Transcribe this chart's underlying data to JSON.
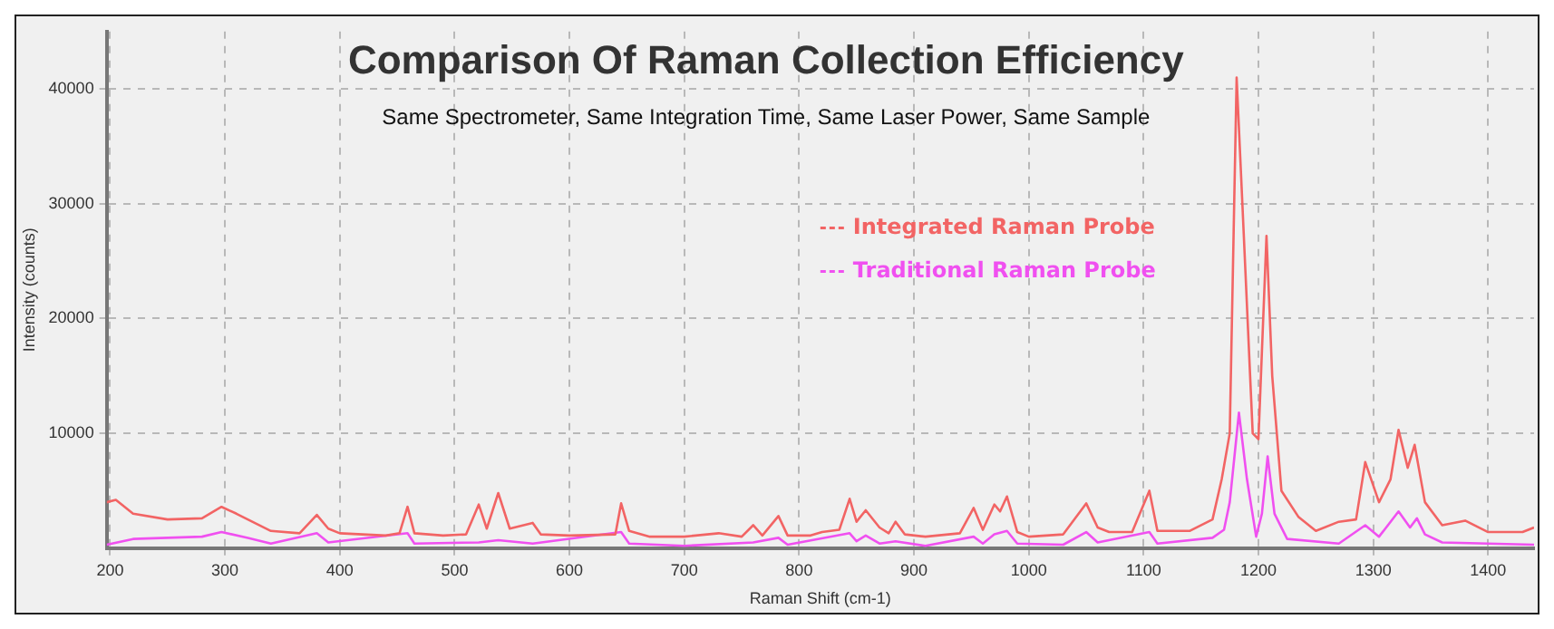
{
  "chart_data": {
    "type": "line",
    "title": "Comparison Of Raman Collection Efficiency",
    "subtitle": "Same Spectrometer, Same Integration Time, Same Laser Power, Same Sample",
    "xlabel": "Raman Shift (cm-1)",
    "ylabel": "Intensity (counts)",
    "xlim": [
      197,
      1440
    ],
    "xticks": [
      200,
      300,
      400,
      500,
      600,
      700,
      800,
      900,
      1000,
      1100,
      1200,
      1300,
      1400
    ],
    "ylim": [
      0,
      45000
    ],
    "yticks": [
      10000,
      20000,
      30000,
      40000
    ],
    "grid": true,
    "legend": "right",
    "marker": "none",
    "series": [
      {
        "name": "Integrated Raman Probe",
        "color": "#f26464",
        "x": [
          197,
          205,
          220,
          250,
          280,
          297,
          310,
          340,
          365,
          380,
          390,
          400,
          440,
          452,
          459,
          465,
          490,
          510,
          521,
          528,
          538,
          548,
          568,
          575,
          600,
          640,
          645,
          652,
          670,
          700,
          730,
          750,
          760,
          768,
          782,
          790,
          810,
          820,
          835,
          844,
          850,
          858,
          870,
          878,
          884,
          892,
          910,
          940,
          952,
          960,
          970,
          975,
          981,
          990,
          1000,
          1030,
          1050,
          1060,
          1070,
          1090,
          1105,
          1112,
          1140,
          1160,
          1168,
          1175,
          1181,
          1186,
          1195,
          1200,
          1207,
          1212,
          1220,
          1235,
          1250,
          1270,
          1285,
          1293,
          1305,
          1315,
          1322,
          1330,
          1336,
          1345,
          1360,
          1380,
          1400,
          1430,
          1440
        ],
        "values": [
          4000,
          4200,
          3000,
          2500,
          2600,
          3600,
          3000,
          1500,
          1300,
          2900,
          1700,
          1300,
          1100,
          1300,
          3600,
          1300,
          1100,
          1200,
          3800,
          1700,
          4800,
          1700,
          2200,
          1200,
          1100,
          1200,
          3900,
          1500,
          1000,
          1000,
          1300,
          1000,
          2000,
          1100,
          2800,
          1100,
          1100,
          1400,
          1600,
          4300,
          2300,
          3300,
          1800,
          1300,
          2300,
          1200,
          1000,
          1300,
          3500,
          1600,
          3800,
          3200,
          4500,
          1400,
          1000,
          1200,
          3900,
          1800,
          1400,
          1400,
          5000,
          1500,
          1500,
          2500,
          6000,
          10000,
          41000,
          30000,
          10000,
          9500,
          27200,
          15000,
          5000,
          2700,
          1500,
          2300,
          2500,
          7500,
          4000,
          6000,
          10300,
          7000,
          9000,
          4000,
          2000,
          2400,
          1400,
          1400,
          1800
        ]
      },
      {
        "name": "Traditional Raman Probe",
        "color": "#f050f0",
        "x": [
          197,
          220,
          280,
          297,
          320,
          340,
          380,
          390,
          459,
          465,
          521,
          538,
          568,
          645,
          652,
          700,
          760,
          782,
          790,
          844,
          850,
          858,
          870,
          884,
          910,
          952,
          960,
          970,
          981,
          990,
          1030,
          1050,
          1060,
          1105,
          1112,
          1160,
          1170,
          1175,
          1183,
          1190,
          1198,
          1203,
          1208,
          1214,
          1225,
          1270,
          1293,
          1305,
          1322,
          1332,
          1338,
          1345,
          1360,
          1440
        ],
        "values": [
          300,
          800,
          1000,
          1400,
          900,
          400,
          1300,
          500,
          1300,
          400,
          500,
          700,
          400,
          1400,
          400,
          200,
          500,
          900,
          300,
          1300,
          600,
          1100,
          400,
          600,
          200,
          1000,
          400,
          1200,
          1500,
          400,
          300,
          1400,
          500,
          1400,
          400,
          900,
          1600,
          4000,
          11800,
          6000,
          1000,
          3000,
          8000,
          3000,
          800,
          400,
          2000,
          1000,
          3200,
          1800,
          2600,
          1200,
          500,
          300
        ]
      }
    ]
  }
}
